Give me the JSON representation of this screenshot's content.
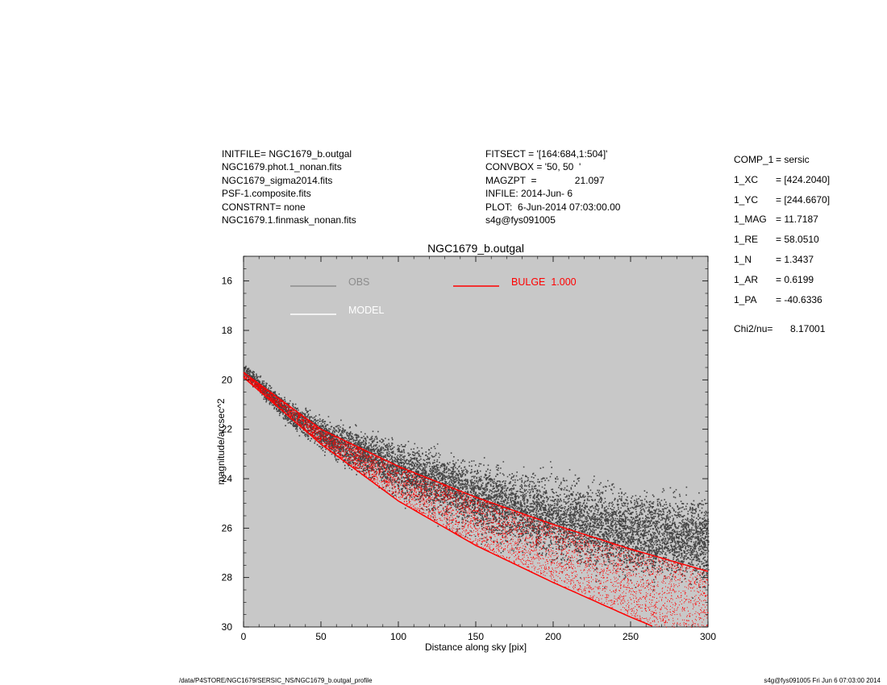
{
  "header": {
    "left": [
      "INITFILE= NGC1679_b.outgal",
      "NGC1679.phot.1_nonan.fits",
      "NGC1679_sigma2014.fits",
      "PSF-1.composite.fits",
      "CONSTRNT= none",
      "NGC1679.1.finmask_nonan.fits"
    ],
    "mid": [
      {
        "key": "FITSECT = ",
        "value": "'[164:684,1:504]'"
      },
      {
        "key": "CONVBOX = ",
        "value": "'50, 50  '"
      },
      {
        "key": "MAGZPT  = ",
        "value": "21.097"
      },
      {
        "key": "INFILE: ",
        "value": "2014-Jun- 6"
      },
      {
        "key": "PLOT:  ",
        "value": "6-Jun-2014 07:03:00.00"
      },
      {
        "key": "",
        "value": "s4g@fys091005"
      }
    ]
  },
  "params": [
    {
      "key": "COMP_1",
      "value": "= sersic"
    },
    {
      "key": "1_XC",
      "value": "= [424.2040]"
    },
    {
      "key": "1_YC",
      "value": "= [244.6670]"
    },
    {
      "key": "1_MAG",
      "value": "= 11.7187"
    },
    {
      "key": "1_RE",
      "value": "= 58.0510"
    },
    {
      "key": "1_N",
      "value": "= 1.3437"
    },
    {
      "key": "1_AR",
      "value": "= 0.6199"
    },
    {
      "key": "1_PA",
      "value": "= -40.6336"
    }
  ],
  "chi": {
    "key": "Chi2/nu=",
    "value": "8.17001"
  },
  "footer": {
    "left": "/data/P4STORE/NGC1679/SERSIC_NS/NGC1679_b.outgal_profile",
    "right": "s4g@fys091005  Fri Jun  6 07:03:00 2014"
  },
  "chart_data": {
    "type": "scatter",
    "title": "NGC1679_b.outgal",
    "xlabel": "Distance along sky [pix]",
    "ylabel": "magnitude/arcsec^2",
    "xlim": [
      0,
      300
    ],
    "ylim": [
      30,
      15
    ],
    "y_inverted": true,
    "x_ticks": [
      0,
      50,
      100,
      150,
      200,
      250,
      300
    ],
    "y_ticks": [
      16,
      18,
      20,
      22,
      24,
      26,
      28,
      30
    ],
    "background_color": "#c8c8c8",
    "legend": [
      {
        "label": "OBS",
        "color": "#8c8c8c"
      },
      {
        "label": "MODEL",
        "color": "#ffffff"
      },
      {
        "label": "BULGE  1.000",
        "color": "#ff0000"
      }
    ],
    "series": [
      {
        "name": "OBS",
        "color": "#444444",
        "center": [
          [
            0,
            19.6
          ],
          [
            30,
            21.4
          ],
          [
            60,
            22.5
          ],
          [
            100,
            23.6
          ],
          [
            150,
            24.8
          ],
          [
            200,
            25.6
          ],
          [
            250,
            26.2
          ],
          [
            300,
            26.5
          ]
        ],
        "halfwidth": [
          [
            0,
            0.3
          ],
          [
            50,
            0.8
          ],
          [
            100,
            1.3
          ],
          [
            150,
            1.7
          ],
          [
            200,
            2.0
          ],
          [
            300,
            2.2
          ]
        ]
      },
      {
        "name": "BULGE  1.000",
        "color": "#ff0000",
        "upper": [
          [
            0,
            19.7
          ],
          [
            50,
            22.0
          ],
          [
            100,
            23.5
          ],
          [
            150,
            24.75
          ],
          [
            200,
            25.85
          ],
          [
            250,
            26.85
          ],
          [
            300,
            27.75
          ]
        ],
        "lower": [
          [
            0,
            19.9
          ],
          [
            50,
            22.6
          ],
          [
            100,
            24.9
          ],
          [
            150,
            26.7
          ],
          [
            200,
            28.2
          ],
          [
            250,
            29.6
          ],
          [
            300,
            30.9
          ]
        ]
      }
    ]
  }
}
